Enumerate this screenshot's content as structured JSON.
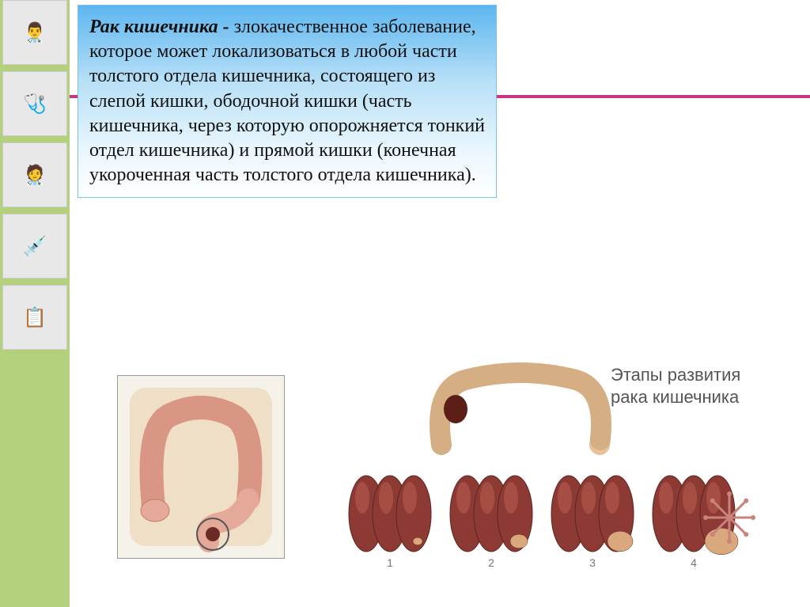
{
  "text": {
    "bold_term": "Рак кишечника - ",
    "body": "злокачественное заболевание, которое может локализоваться в любой части толстого отдела кишечника, состоящего из слепой кишки, ободочной кишки (часть кишечника, через которую опорожняется тонкий отдел кишечника) и прямой кишки (конечная укороченная часть толстого отдела кишечника)."
  },
  "left_thumbs": [
    "👨‍⚕️",
    "🩺",
    "🧑‍⚕️",
    "💉",
    "📋"
  ],
  "figure_left": {
    "frame_bg": "#f5f2ea",
    "colon_fill": "#e4a998",
    "colon_stroke": "#c77b66",
    "tumor_fill": "#6b2b24",
    "abdomen_fill": "#f0dfc7"
  },
  "figure_right": {
    "caption_line1": "Этапы развития",
    "caption_line2": "рака кишечника",
    "caption_color": "#6a6a6a",
    "caption_fontsize": 22,
    "colon_top": {
      "fill": "#e7c29a",
      "stroke": "#b88a5c",
      "tumor_fill": "#5c1f18"
    },
    "stages": {
      "count": 4,
      "labels": [
        "1",
        "2",
        "3",
        "4"
      ],
      "label_color": "#777",
      "segment_fill": "#8e3a34",
      "segment_highlight": "#b85b50",
      "segment_stroke": "#5e241f",
      "tumor_fill": "#d9a87d",
      "metastasis_color": "#c9837a",
      "spacing": 128,
      "width": 110,
      "height": 100
    }
  },
  "style": {
    "slide_width": 1024,
    "slide_height": 767,
    "left_strip_bg": "#b3d17c",
    "rule_color": "#c83784",
    "textbox_gradient": [
      "#5db6f0",
      "#b8e0f7",
      "#e9f6fd",
      "#ffffff"
    ],
    "textbox_border": "#7ac0ec",
    "body_fontsize": 24
  }
}
